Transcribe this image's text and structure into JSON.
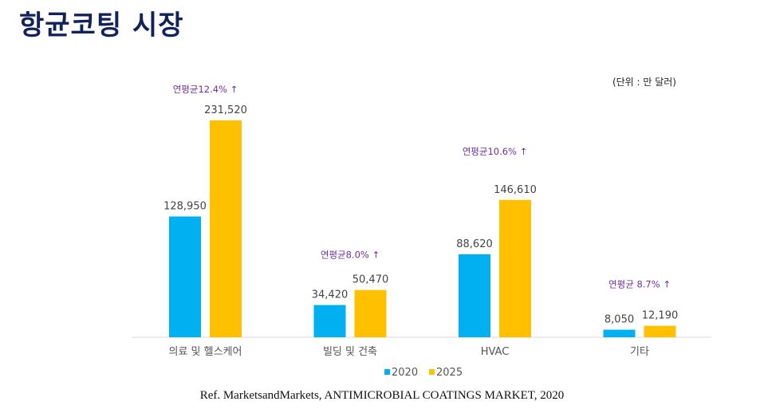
{
  "title": "항균코팅 시장",
  "unit_note": "(단위 : 만 달러)",
  "reference": "Ref. MarketsandMarkets, ANTIMICROBIAL COATINGS MARKET, 2020",
  "chart_data": {
    "type": "bar",
    "categories": [
      "의료 및 헬스케어",
      "빌딩 및 건축",
      "HVAC",
      "기타"
    ],
    "series": [
      {
        "name": "2020",
        "color": "#00b0f0",
        "values": [
          128950,
          34420,
          88620,
          8050
        ],
        "labels": [
          "128,950",
          "34,420",
          "88,620",
          "8,050"
        ]
      },
      {
        "name": "2025",
        "color": "#ffc000",
        "values": [
          231520,
          50470,
          146610,
          12190
        ],
        "labels": [
          "231,520",
          "50,470",
          "146,610",
          "12,190"
        ]
      }
    ],
    "annotations": [
      "연평균12.4% ↑",
      "연평균8.0% ↑",
      "연평균10.6% ↑",
      "연평균 8.7% ↑"
    ],
    "annotation_color": "#7030a0",
    "legend_position": "bottom",
    "grid": false,
    "ylim": [
      0,
      231520
    ]
  }
}
